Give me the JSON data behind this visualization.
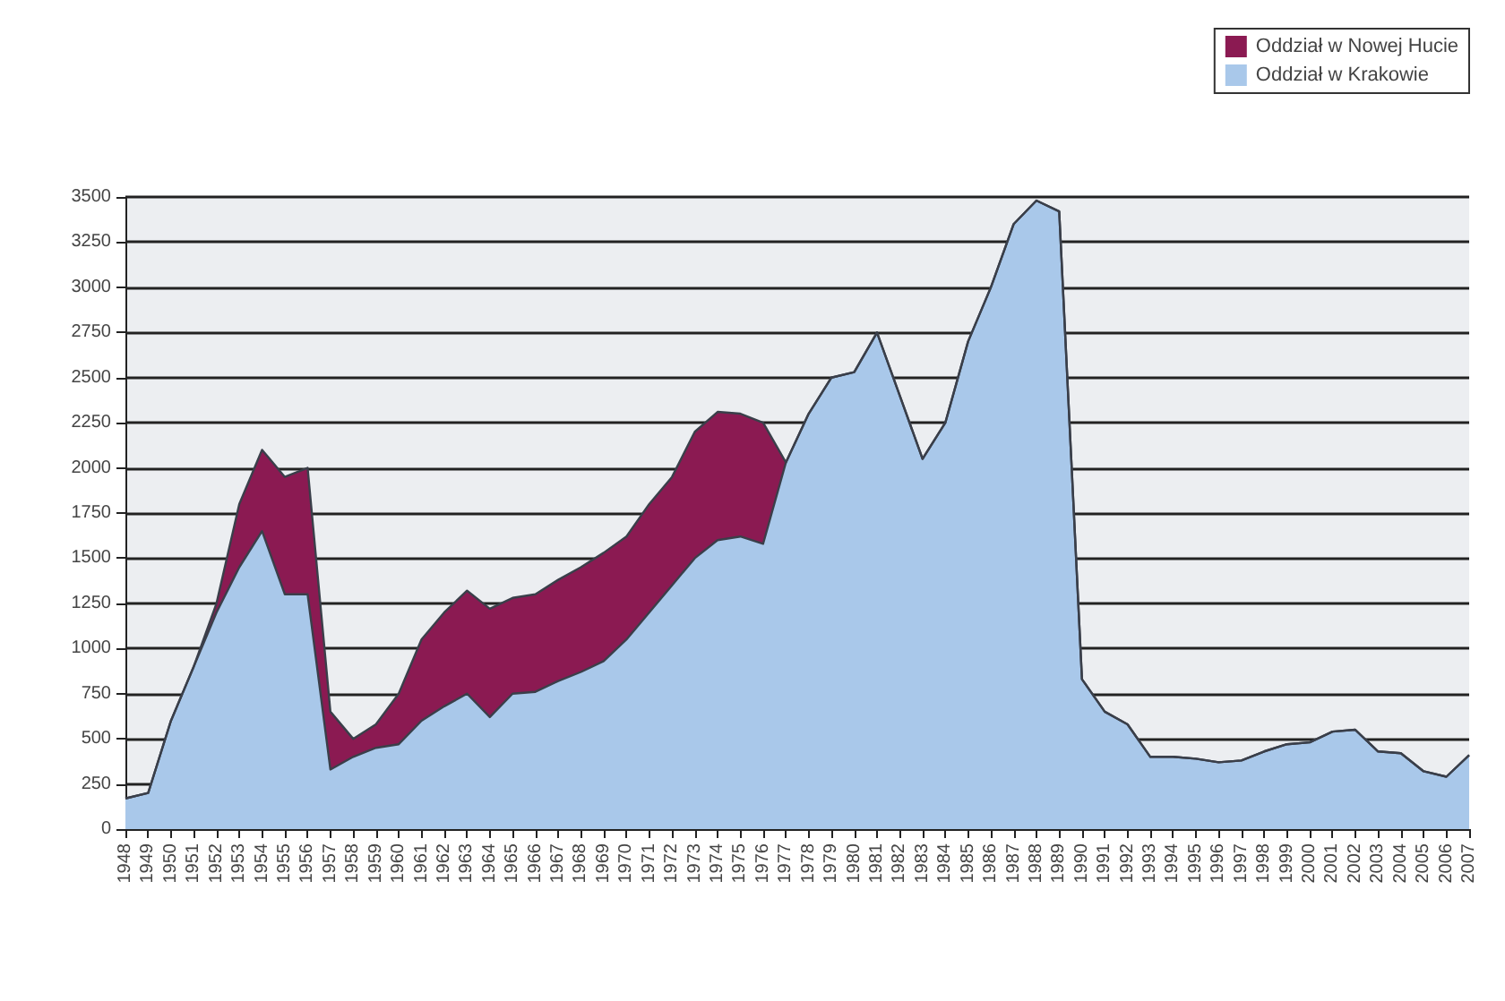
{
  "chart_data": {
    "type": "area",
    "stacked": true,
    "categories": [
      "1948",
      "1949",
      "1950",
      "1951",
      "1952",
      "1953",
      "1954",
      "1955",
      "1956",
      "1957",
      "1958",
      "1959",
      "1960",
      "1961",
      "1962",
      "1963",
      "1964",
      "1965",
      "1966",
      "1967",
      "1968",
      "1969",
      "1970",
      "1971",
      "1972",
      "1973",
      "1974",
      "1975",
      "1976",
      "1977",
      "1978",
      "1979",
      "1980",
      "1981",
      "1982",
      "1983",
      "1984",
      "1985",
      "1986",
      "1987",
      "1988",
      "1989",
      "1990",
      "1991",
      "1992",
      "1993",
      "1994",
      "1995",
      "1996",
      "1997",
      "1998",
      "1999",
      "2000",
      "2001",
      "2002",
      "2003",
      "2004",
      "2005",
      "2006",
      "2007"
    ],
    "series": [
      {
        "name": "Oddział w Krakowie",
        "color": "#a9c8ea",
        "values": [
          170,
          200,
          600,
          900,
          1200,
          1450,
          1650,
          1300,
          1300,
          330,
          400,
          450,
          470,
          600,
          680,
          750,
          620,
          750,
          760,
          820,
          870,
          930,
          1050,
          1200,
          1350,
          1500,
          1600,
          1620,
          1580,
          2030,
          2300,
          2500,
          2530,
          2750,
          2400,
          2050,
          2250,
          2700,
          3000,
          3350,
          3480,
          3420,
          830,
          650,
          580,
          400,
          400,
          390,
          370,
          380,
          430,
          470,
          480,
          540,
          550,
          430,
          420,
          320,
          290,
          410
        ]
      },
      {
        "name": "Oddział w Nowej Hucie",
        "color": "#8b1a52",
        "values": [
          0,
          0,
          0,
          0,
          50,
          350,
          450,
          650,
          700,
          320,
          100,
          130,
          280,
          450,
          520,
          570,
          600,
          530,
          540,
          560,
          580,
          600,
          570,
          600,
          600,
          700,
          710,
          680,
          670,
          0,
          0,
          0,
          0,
          0,
          0,
          0,
          0,
          0,
          0,
          0,
          0,
          0,
          0,
          0,
          0,
          0,
          0,
          0,
          0,
          0,
          0,
          0,
          0,
          0,
          0,
          0,
          0,
          0,
          0,
          0
        ]
      }
    ],
    "ylim": [
      0,
      3500
    ],
    "yticks": [
      0,
      250,
      500,
      750,
      1000,
      1250,
      1500,
      1750,
      2000,
      2250,
      2500,
      2750,
      3000,
      3250,
      3500
    ],
    "grid": "y",
    "legend": "top right"
  }
}
